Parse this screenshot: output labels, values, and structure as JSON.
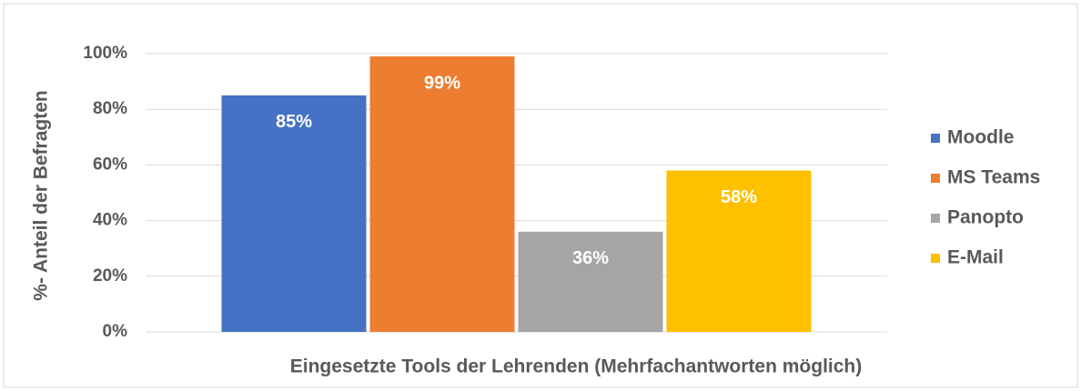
{
  "chart_data": {
    "type": "bar",
    "x_label": "Eingesetzte Tools der Lehrenden (Mehrfachantworten möglich)",
    "y_label": "%- Anteil der Befragten",
    "categories": [
      null
    ],
    "series": [
      {
        "name": "Moodle",
        "color": "#4472c4",
        "values": [
          85
        ],
        "value_labels": [
          "85%"
        ]
      },
      {
        "name": "MS Teams",
        "color": "#ed7d31",
        "values": [
          99
        ],
        "value_labels": [
          "99%"
        ]
      },
      {
        "name": "Panopto",
        "color": "#a5a5a5",
        "values": [
          36
        ],
        "value_labels": [
          "36%"
        ]
      },
      {
        "name": "E-Mail",
        "color": "#ffc000",
        "values": [
          58
        ],
        "value_labels": [
          "58%"
        ]
      }
    ],
    "ylim": [
      0,
      100
    ],
    "yticks": [
      {
        "value": 0,
        "label": "0%"
      },
      {
        "value": 20,
        "label": "20%"
      },
      {
        "value": 40,
        "label": "40%"
      },
      {
        "value": 60,
        "label": "60%"
      },
      {
        "value": 80,
        "label": "80%"
      },
      {
        "value": 100,
        "label": "100%"
      }
    ],
    "grid": true,
    "legend": "right"
  }
}
